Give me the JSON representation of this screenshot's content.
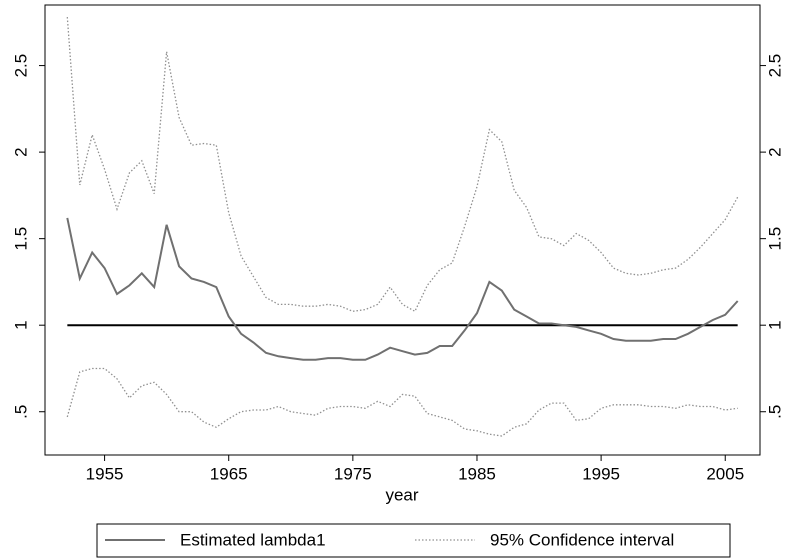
{
  "chart_data": {
    "type": "line",
    "x_label": "year",
    "x": [
      1952,
      1953,
      1954,
      1955,
      1956,
      1957,
      1958,
      1959,
      1960,
      1961,
      1962,
      1963,
      1964,
      1965,
      1966,
      1967,
      1968,
      1969,
      1970,
      1971,
      1972,
      1973,
      1974,
      1975,
      1976,
      1977,
      1978,
      1979,
      1980,
      1981,
      1982,
      1983,
      1984,
      1985,
      1986,
      1987,
      1988,
      1989,
      1990,
      1991,
      1992,
      1993,
      1994,
      1995,
      1996,
      1997,
      1998,
      1999,
      2000,
      2001,
      2002,
      2003,
      2004,
      2005,
      2006
    ],
    "xlim": [
      1950.2,
      2007.8
    ],
    "xticks": [
      1955,
      1965,
      1975,
      1985,
      1995,
      2005
    ],
    "ylim": [
      0.25,
      2.85
    ],
    "yticks": [
      {
        "value": 0.5,
        "label": ".5"
      },
      1,
      1.5,
      2,
      2.5
    ],
    "hline": 1,
    "series": [
      {
        "name": "Estimated lambda1",
        "color": "#707070",
        "style": "solid",
        "values": [
          1.62,
          1.27,
          1.42,
          1.33,
          1.18,
          1.23,
          1.3,
          1.22,
          1.58,
          1.34,
          1.27,
          1.25,
          1.22,
          1.05,
          0.95,
          0.9,
          0.84,
          0.82,
          0.81,
          0.8,
          0.8,
          0.81,
          0.81,
          0.8,
          0.8,
          0.83,
          0.87,
          0.85,
          0.83,
          0.84,
          0.88,
          0.88,
          0.97,
          1.07,
          1.25,
          1.2,
          1.09,
          1.05,
          1.01,
          1.01,
          1.0,
          0.99,
          0.97,
          0.95,
          0.92,
          0.91,
          0.91,
          0.91,
          0.92,
          0.92,
          0.95,
          0.99,
          1.03,
          1.06,
          1.14
        ]
      },
      {
        "name": "95% Confidence interval",
        "color": "#909090",
        "style": "dotted",
        "upper": [
          2.78,
          1.81,
          2.1,
          1.9,
          1.67,
          1.88,
          1.95,
          1.76,
          2.58,
          2.2,
          2.04,
          2.05,
          2.04,
          1.65,
          1.4,
          1.28,
          1.16,
          1.12,
          1.12,
          1.11,
          1.11,
          1.12,
          1.11,
          1.08,
          1.09,
          1.12,
          1.22,
          1.12,
          1.08,
          1.23,
          1.32,
          1.36,
          1.57,
          1.8,
          2.13,
          2.06,
          1.78,
          1.68,
          1.51,
          1.5,
          1.46,
          1.53,
          1.49,
          1.42,
          1.33,
          1.3,
          1.29,
          1.3,
          1.32,
          1.33,
          1.38,
          1.45,
          1.53,
          1.61,
          1.74
        ],
        "lower": [
          0.47,
          0.73,
          0.75,
          0.75,
          0.69,
          0.58,
          0.65,
          0.67,
          0.6,
          0.5,
          0.5,
          0.44,
          0.41,
          0.46,
          0.5,
          0.51,
          0.51,
          0.53,
          0.5,
          0.49,
          0.48,
          0.52,
          0.53,
          0.53,
          0.52,
          0.56,
          0.53,
          0.6,
          0.59,
          0.49,
          0.47,
          0.45,
          0.4,
          0.39,
          0.37,
          0.36,
          0.41,
          0.43,
          0.51,
          0.55,
          0.55,
          0.45,
          0.46,
          0.52,
          0.54,
          0.54,
          0.54,
          0.53,
          0.53,
          0.52,
          0.54,
          0.53,
          0.53,
          0.51,
          0.52
        ]
      }
    ]
  }
}
